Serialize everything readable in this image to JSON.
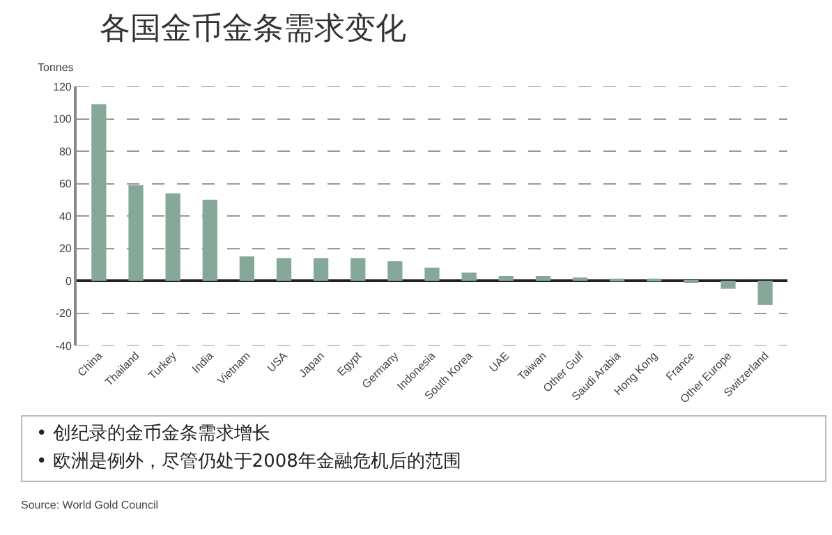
{
  "chart_data": {
    "type": "bar",
    "title": "各国金币金条需求变化",
    "ylabel": "Tonnes",
    "categories": [
      "China",
      "Thailand",
      "Turkey",
      "India",
      "Vietnam",
      "USA",
      "Japan",
      "Egypt",
      "Germany",
      "Indonesia",
      "South Korea",
      "UAE",
      "Taiwan",
      "Other Gulf",
      "Saudi Arabia",
      "Hong Kong",
      "France",
      "Other Europe",
      "Switzerland"
    ],
    "values": [
      109,
      59,
      54,
      50,
      15,
      14,
      14,
      14,
      12,
      8,
      5,
      3,
      3,
      2,
      0.5,
      0.5,
      -0.5,
      -5,
      -15
    ],
    "color": "#86a898",
    "ylim": [
      -40,
      120
    ],
    "yticks": [
      -40,
      -20,
      0,
      20,
      40,
      60,
      80,
      100,
      120
    ],
    "grid": "y",
    "annotations": [
      "• 创纪录的金币金条需求增长",
      "• 欧洲是例外，尽管仍处于2008年金融危机后的范围",
      "Source: World Gold Council"
    ]
  }
}
